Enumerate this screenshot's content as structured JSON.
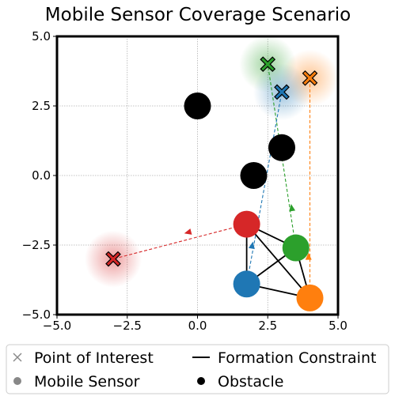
{
  "chart_data": {
    "type": "scatter",
    "title": "Mobile Sensor Coverage Scenario",
    "xlabel": "",
    "ylabel": "",
    "xlim": [
      -5.0,
      5.0
    ],
    "ylim": [
      -5.0,
      5.0
    ],
    "xticks": [
      "−5.0",
      "−2.5",
      "0.0",
      "2.5",
      "5.0"
    ],
    "yticks": [
      "−5.0",
      "−2.5",
      "0.0",
      "2.5",
      "5.0"
    ],
    "xtick_values": [
      -5.0,
      -2.5,
      0.0,
      2.5,
      5.0
    ],
    "ytick_values": [
      -5.0,
      -2.5,
      0.0,
      2.5,
      5.0
    ],
    "grid": true,
    "legend_position": "bottom (below plot)",
    "points_of_interest": [
      {
        "x": 2.5,
        "y": 4.0,
        "color": "#2ca02c"
      },
      {
        "x": 4.0,
        "y": 3.5,
        "color": "#ff7f0e"
      },
      {
        "x": 3.0,
        "y": 3.0,
        "color": "#1f77b4"
      },
      {
        "x": -3.0,
        "y": -3.0,
        "color": "#d62728"
      }
    ],
    "obstacles": [
      {
        "x": 0.0,
        "y": 2.5
      },
      {
        "x": 3.0,
        "y": 1.0
      },
      {
        "x": 2.0,
        "y": 0.0
      }
    ],
    "sensors": [
      {
        "x": 1.75,
        "y": -1.75,
        "color": "#d62728"
      },
      {
        "x": 3.5,
        "y": -2.6,
        "color": "#2ca02c"
      },
      {
        "x": 1.75,
        "y": -3.9,
        "color": "#1f77b4"
      },
      {
        "x": 4.0,
        "y": -4.4,
        "color": "#ff7f0e"
      }
    ],
    "formation_edges": [
      [
        0,
        1
      ],
      [
        0,
        2
      ],
      [
        0,
        3
      ],
      [
        1,
        2
      ],
      [
        1,
        3
      ],
      [
        2,
        3
      ]
    ],
    "assignments": [
      {
        "sensor": 0,
        "poi": 3,
        "arrow": [
          -0.35,
          -2.05
        ]
      },
      {
        "sensor": 1,
        "poi": 0,
        "arrow": [
          3.35,
          -1.15
        ]
      },
      {
        "sensor": 2,
        "poi": 2,
        "arrow": [
          1.95,
          -2.5
        ]
      },
      {
        "sensor": 3,
        "poi": 1,
        "arrow": [
          3.95,
          -2.9
        ]
      }
    ],
    "legend": {
      "poi": "Point of Interest",
      "sensor": "Mobile Sensor",
      "constraint": "Formation Constraint",
      "obstacle": "Obstacle"
    }
  }
}
